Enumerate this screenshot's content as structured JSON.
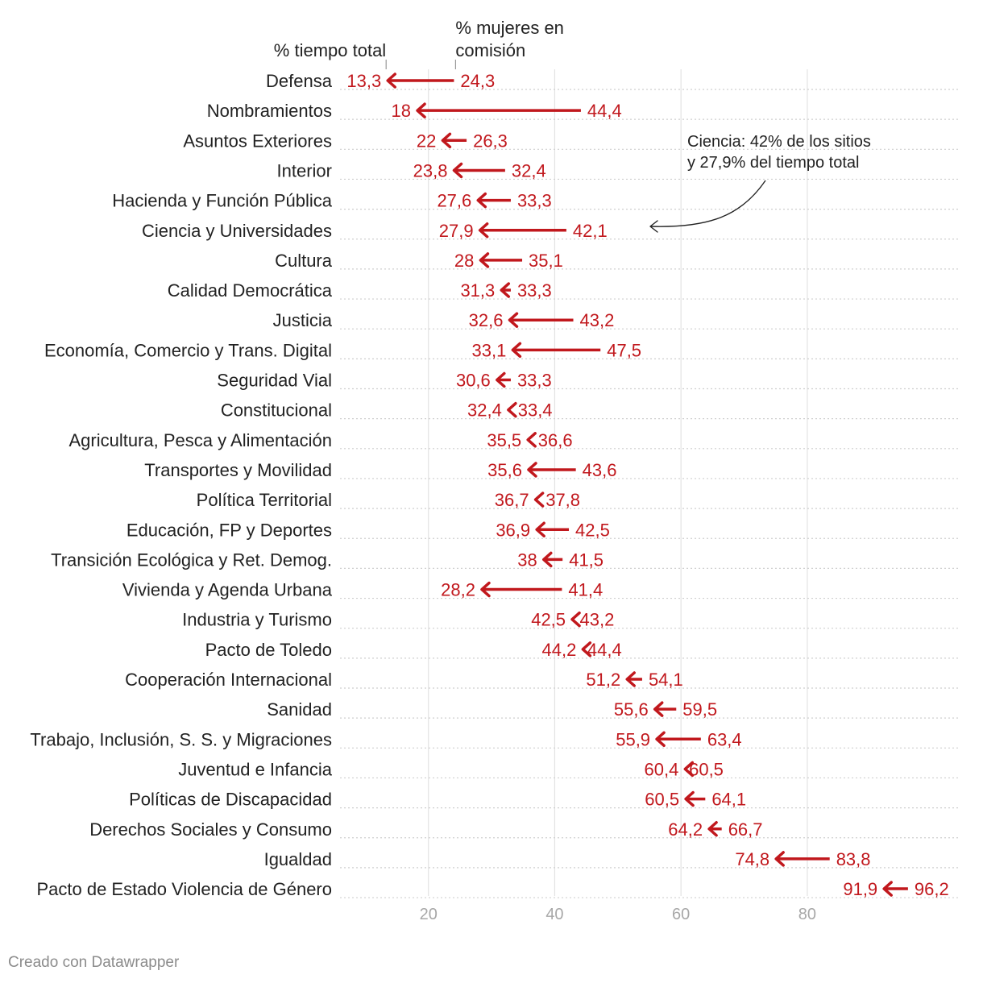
{
  "chart_data": {
    "type": "arrow",
    "header_time": "% tiempo total",
    "header_women": "% mujeres en comisión",
    "x_ticks": [
      20,
      40,
      60,
      80
    ],
    "xlim": [
      6,
      104
    ],
    "colors": {
      "decrease": "#c1181d",
      "increase": "#001f6b",
      "grid": "#e3e3e3",
      "dots": "#cfcfcf",
      "tick": "#a8a8a8"
    },
    "annotation": {
      "line1": "Ciencia: 42% de los sitios",
      "line2": "y 27,9% del tiempo total"
    },
    "rows": [
      {
        "label": "Defensa",
        "from": 24.3,
        "to": 13.3,
        "from_label": "24,3",
        "to_label": "13,3"
      },
      {
        "label": "Nombramientos",
        "from": 44.4,
        "to": 18,
        "from_label": "44,4",
        "to_label": "18"
      },
      {
        "label": "Asuntos Exteriores",
        "from": 26.3,
        "to": 22,
        "from_label": "26,3",
        "to_label": "22"
      },
      {
        "label": "Interior",
        "from": 32.4,
        "to": 23.8,
        "from_label": "32,4",
        "to_label": "23,8"
      },
      {
        "label": "Hacienda y Función Pública",
        "from": 33.3,
        "to": 27.6,
        "from_label": "33,3",
        "to_label": "27,6"
      },
      {
        "label": "Ciencia y Universidades",
        "from": 42.1,
        "to": 27.9,
        "from_label": "42,1",
        "to_label": "27,9"
      },
      {
        "label": "Cultura",
        "from": 35.1,
        "to": 28,
        "from_label": "35,1",
        "to_label": "28"
      },
      {
        "label": "Calidad Democrática",
        "from": 33.3,
        "to": 31.3,
        "from_label": "33,3",
        "to_label": "31,3"
      },
      {
        "label": "Justicia",
        "from": 43.2,
        "to": 32.6,
        "from_label": "43,2",
        "to_label": "32,6"
      },
      {
        "label": "Economía, Comercio y Trans. Digital",
        "from": 47.5,
        "to": 33.1,
        "from_label": "47,5",
        "to_label": "33,1"
      },
      {
        "label": "Seguridad Vial",
        "from": 33.3,
        "to": 30.6,
        "from_label": "33,3",
        "to_label": "30,6"
      },
      {
        "label": "Constitucional",
        "from": 33.4,
        "to": 32.4,
        "from_label": "33,4",
        "to_label": "32,4"
      },
      {
        "label": "Agricultura, Pesca y Alimentación",
        "from": 36.6,
        "to": 35.5,
        "from_label": "36,6",
        "to_label": "35,5"
      },
      {
        "label": "Transportes y Movilidad",
        "from": 43.6,
        "to": 35.6,
        "from_label": "43,6",
        "to_label": "35,6"
      },
      {
        "label": "Política Territorial",
        "from": 37.8,
        "to": 36.7,
        "from_label": "37,8",
        "to_label": "36,7"
      },
      {
        "label": "Educación, FP y Deportes",
        "from": 42.5,
        "to": 36.9,
        "from_label": "42,5",
        "to_label": "36,9"
      },
      {
        "label": "Transición Ecológica y Ret. Demog.",
        "from": 41.5,
        "to": 38,
        "from_label": "41,5",
        "to_label": "38"
      },
      {
        "label": "Vivienda y Agenda Urbana",
        "from": 41.4,
        "to": 28.2,
        "from_label": "41,4",
        "to_label": "28,2"
      },
      {
        "label": "Industria y Turismo",
        "from": 43.2,
        "to": 42.5,
        "from_label": "43,2",
        "to_label": "42,5"
      },
      {
        "label": "Pacto de Toledo",
        "from": 44.4,
        "to": 44.2,
        "from_label": "44,4",
        "to_label": "44,2"
      },
      {
        "label": "Cooperación Internacional",
        "from": 54.1,
        "to": 51.2,
        "from_label": "54,1",
        "to_label": "51,2"
      },
      {
        "label": "Sanidad",
        "from": 59.5,
        "to": 55.6,
        "from_label": "59,5",
        "to_label": "55,6"
      },
      {
        "label": "Trabajo, Inclusión, S. S. y Migraciones",
        "from": 63.4,
        "to": 55.9,
        "from_label": "63,4",
        "to_label": "55,9"
      },
      {
        "label": "Juventud e Infancia",
        "from": 60.5,
        "to": 60.4,
        "from_label": "60,5",
        "to_label": "60,4"
      },
      {
        "label": "Políticas de Discapacidad",
        "from": 64.1,
        "to": 60.5,
        "from_label": "64,1",
        "to_label": "60,5"
      },
      {
        "label": "Derechos Sociales y Consumo",
        "from": 66.7,
        "to": 64.2,
        "from_label": "66,7",
        "to_label": "64,2"
      },
      {
        "label": "Igualdad",
        "from": 83.8,
        "to": 74.8,
        "from_label": "83,8",
        "to_label": "74,8"
      },
      {
        "label": "Pacto de Estado Violencia de Género",
        "from": 96.2,
        "to": 91.9,
        "from_label": "96,2",
        "to_label": "91,9"
      }
    ]
  },
  "footer": {
    "credit": "Creado con Datawrapper"
  }
}
